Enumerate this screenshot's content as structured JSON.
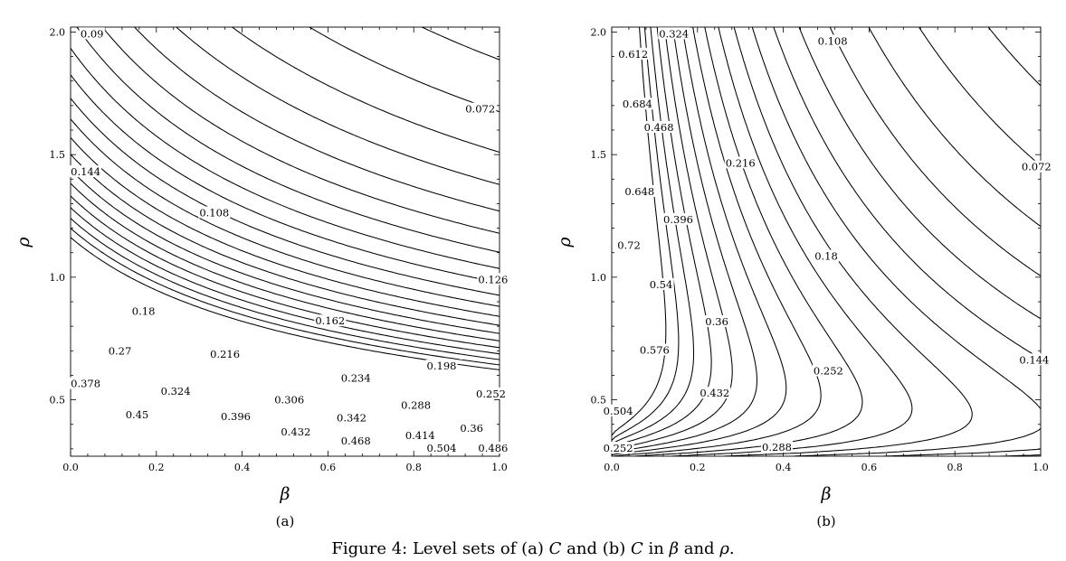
{
  "chart_data": [
    {
      "id": "a",
      "type": "contour",
      "panel_label": "(a)",
      "xlabel": "β",
      "ylabel": "ρ",
      "xlim": [
        0,
        1
      ],
      "ylim": [
        0.27,
        2.02
      ],
      "xticks": [
        {
          "value": 0,
          "label": "0.0"
        },
        {
          "value": 0.2,
          "label": "0.2"
        },
        {
          "value": 0.4,
          "label": "0.4"
        },
        {
          "value": 0.6,
          "label": "0.6"
        },
        {
          "value": 0.8,
          "label": "0.8"
        },
        {
          "value": 1.0,
          "label": "1.0"
        }
      ],
      "yticks": [
        {
          "value": 0.5,
          "label": "0.5"
        },
        {
          "value": 1.0,
          "label": "1.0"
        },
        {
          "value": 1.5,
          "label": "1.5"
        },
        {
          "value": 2.0,
          "label": "2.0"
        }
      ],
      "contour_levels": [
        0.072,
        0.09,
        0.108,
        0.126,
        0.144,
        0.162,
        0.18,
        0.198,
        0.216,
        0.234,
        0.252,
        0.27,
        0.288,
        0.306,
        0.324,
        0.342,
        0.36,
        0.378,
        0.396,
        0.414,
        0.432,
        0.45,
        0.468,
        0.486,
        0.504
      ],
      "contour_labels": [
        {
          "text": "0.09",
          "x": 0.05,
          "y": 1.993
        },
        {
          "text": "0.072",
          "x": 0.955,
          "y": 1.686
        },
        {
          "text": "0.144",
          "x": 0.035,
          "y": 1.43
        },
        {
          "text": "0.108",
          "x": 0.335,
          "y": 1.263
        },
        {
          "text": "0.126",
          "x": 0.985,
          "y": 0.991
        },
        {
          "text": "0.18",
          "x": 0.17,
          "y": 0.862
        },
        {
          "text": "0.162",
          "x": 0.605,
          "y": 0.822
        },
        {
          "text": "0.27",
          "x": 0.115,
          "y": 0.699
        },
        {
          "text": "0.216",
          "x": 0.36,
          "y": 0.686
        },
        {
          "text": "0.198",
          "x": 0.865,
          "y": 0.638
        },
        {
          "text": "0.234",
          "x": 0.665,
          "y": 0.588
        },
        {
          "text": "0.378",
          "x": 0.035,
          "y": 0.566
        },
        {
          "text": "0.324",
          "x": 0.245,
          "y": 0.535
        },
        {
          "text": "0.252",
          "x": 0.98,
          "y": 0.525
        },
        {
          "text": "0.306",
          "x": 0.51,
          "y": 0.5
        },
        {
          "text": "0.288",
          "x": 0.805,
          "y": 0.479
        },
        {
          "text": "0.45",
          "x": 0.155,
          "y": 0.44
        },
        {
          "text": "0.396",
          "x": 0.385,
          "y": 0.432
        },
        {
          "text": "0.342",
          "x": 0.655,
          "y": 0.427
        },
        {
          "text": "0.36",
          "x": 0.935,
          "y": 0.385
        },
        {
          "text": "0.432",
          "x": 0.525,
          "y": 0.369
        },
        {
          "text": "0.414",
          "x": 0.815,
          "y": 0.355
        },
        {
          "text": "0.468",
          "x": 0.665,
          "y": 0.333
        },
        {
          "text": "0.504",
          "x": 0.865,
          "y": 0.303
        },
        {
          "text": "0.486",
          "x": 0.985,
          "y": 0.303
        }
      ]
    },
    {
      "id": "b",
      "type": "contour",
      "panel_label": "(b)",
      "xlabel": "β",
      "ylabel": "ρ",
      "xlim": [
        0,
        1
      ],
      "ylim": [
        0.27,
        2.02
      ],
      "xticks": [
        {
          "value": 0,
          "label": "0.0"
        },
        {
          "value": 0.2,
          "label": "0.2"
        },
        {
          "value": 0.4,
          "label": "0.4"
        },
        {
          "value": 0.6,
          "label": "0.6"
        },
        {
          "value": 0.8,
          "label": "0.8"
        },
        {
          "value": 1.0,
          "label": "1.0"
        }
      ],
      "yticks": [
        {
          "value": 0.5,
          "label": "0.5"
        },
        {
          "value": 1.0,
          "label": "1.0"
        },
        {
          "value": 1.5,
          "label": "1.5"
        },
        {
          "value": 2.0,
          "label": "2.0"
        }
      ],
      "contour_levels": [
        0.072,
        0.108,
        0.144,
        0.18,
        0.216,
        0.252,
        0.288,
        0.324,
        0.36,
        0.396,
        0.432,
        0.468,
        0.504,
        0.54,
        0.576,
        0.612,
        0.648,
        0.684,
        0.72
      ],
      "contour_labels": [
        {
          "text": "0.324",
          "x": 0.145,
          "y": 1.993
        },
        {
          "text": "0.108",
          "x": 0.515,
          "y": 1.963
        },
        {
          "text": "0.612",
          "x": 0.05,
          "y": 1.91
        },
        {
          "text": "0.684",
          "x": 0.06,
          "y": 1.706
        },
        {
          "text": "0.468",
          "x": 0.11,
          "y": 1.611
        },
        {
          "text": "0.072",
          "x": 0.99,
          "y": 1.45
        },
        {
          "text": "0.216",
          "x": 0.3,
          "y": 1.466
        },
        {
          "text": "0.648",
          "x": 0.065,
          "y": 1.35
        },
        {
          "text": "0.396",
          "x": 0.155,
          "y": 1.236
        },
        {
          "text": "0.72",
          "x": 0.04,
          "y": 1.13
        },
        {
          "text": "0.18",
          "x": 0.5,
          "y": 1.086
        },
        {
          "text": "0.54",
          "x": 0.115,
          "y": 0.97
        },
        {
          "text": "0.36",
          "x": 0.245,
          "y": 0.819
        },
        {
          "text": "0.576",
          "x": 0.1,
          "y": 0.703
        },
        {
          "text": "0.144",
          "x": 0.985,
          "y": 0.663
        },
        {
          "text": "0.252",
          "x": 0.505,
          "y": 0.618
        },
        {
          "text": "0.432",
          "x": 0.24,
          "y": 0.527
        },
        {
          "text": "0.504",
          "x": 0.015,
          "y": 0.455
        },
        {
          "text": "0.288",
          "x": 0.385,
          "y": 0.307
        },
        {
          "text": "0.252",
          "x": 0.015,
          "y": 0.303
        }
      ]
    }
  ],
  "caption": {
    "prefix": "Figure 4: Level sets of (a) ",
    "sym1": "C",
    "middle": " and (b) ",
    "sym2": "C",
    "suffix_1": " in ",
    "sym3": "β",
    "suffix_2": " and ",
    "sym4": "ρ",
    "end": "."
  }
}
